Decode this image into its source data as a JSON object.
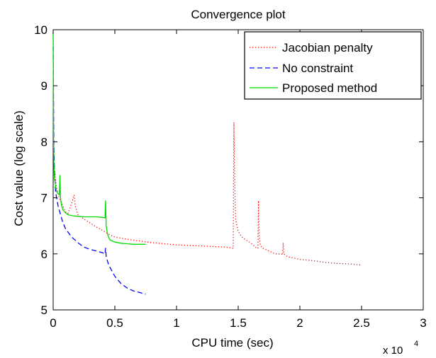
{
  "chart_data": {
    "type": "line",
    "title": "Convergence plot",
    "xlabel": "CPU time (sec)",
    "ylabel": "Cost value (log scale)",
    "x_multiplier_label": "x 10",
    "x_multiplier_exponent": "4",
    "xlim": [
      0,
      3
    ],
    "ylim": [
      5,
      10
    ],
    "x_ticks": [
      0,
      0.5,
      1,
      1.5,
      2,
      2.5,
      3
    ],
    "x_tick_labels": [
      "0",
      "0.5",
      "1",
      "1.5",
      "2",
      "2.5",
      "3"
    ],
    "y_ticks": [
      5,
      6,
      7,
      8,
      9,
      10
    ],
    "y_tick_labels": [
      "5",
      "6",
      "7",
      "8",
      "9",
      "10"
    ],
    "grid": false,
    "legend_position": "top-right",
    "series": [
      {
        "name": "Jacobian penalty",
        "color": "#ff0000",
        "style": "dotted",
        "x": [
          0.0,
          0.005,
          0.01,
          0.02,
          0.03,
          0.05,
          0.08,
          0.1,
          0.12,
          0.15,
          0.17,
          0.18,
          0.2,
          0.25,
          0.3,
          0.35,
          0.4,
          0.45,
          0.5,
          0.6,
          0.7,
          0.8,
          0.9,
          1.0,
          1.1,
          1.2,
          1.3,
          1.4,
          1.46,
          1.465,
          1.47,
          1.475,
          1.48,
          1.5,
          1.53,
          1.56,
          1.6,
          1.65,
          1.66,
          1.665,
          1.67,
          1.68,
          1.7,
          1.75,
          1.8,
          1.85,
          1.86,
          1.865,
          1.87,
          1.88,
          1.9,
          2.0,
          2.1,
          2.2,
          2.3,
          2.4,
          2.5
        ],
        "y": [
          9.9,
          8.0,
          7.55,
          7.3,
          7.15,
          7.0,
          6.85,
          6.75,
          6.72,
          6.9,
          7.05,
          6.85,
          6.7,
          6.62,
          6.55,
          6.48,
          6.42,
          6.35,
          6.3,
          6.26,
          6.23,
          6.2,
          6.18,
          6.16,
          6.15,
          6.14,
          6.13,
          6.12,
          6.1,
          8.35,
          7.6,
          6.9,
          6.6,
          6.4,
          6.3,
          6.25,
          6.2,
          6.1,
          6.1,
          6.95,
          6.3,
          6.15,
          6.1,
          6.05,
          6.0,
          6.0,
          5.98,
          6.2,
          6.0,
          5.98,
          5.95,
          5.9,
          5.88,
          5.85,
          5.83,
          5.82,
          5.8
        ]
      },
      {
        "name": "No constraint",
        "color": "#0000ff",
        "style": "dashed",
        "x": [
          0.0,
          0.005,
          0.01,
          0.02,
          0.04,
          0.06,
          0.08,
          0.1,
          0.15,
          0.2,
          0.25,
          0.3,
          0.35,
          0.4,
          0.42,
          0.425,
          0.43,
          0.45,
          0.5,
          0.55,
          0.6,
          0.65,
          0.7,
          0.75
        ],
        "y": [
          9.7,
          8.0,
          7.5,
          7.1,
          6.85,
          6.7,
          6.55,
          6.45,
          6.3,
          6.2,
          6.12,
          6.08,
          6.05,
          6.02,
          6.0,
          6.1,
          5.95,
          5.8,
          5.6,
          5.47,
          5.39,
          5.34,
          5.31,
          5.28
        ]
      },
      {
        "name": "Proposed method",
        "color": "#00dd00",
        "style": "solid",
        "x": [
          0.0,
          0.003,
          0.006,
          0.01,
          0.02,
          0.03,
          0.05,
          0.055,
          0.06,
          0.065,
          0.07,
          0.08,
          0.1,
          0.12,
          0.15,
          0.2,
          0.25,
          0.3,
          0.35,
          0.4,
          0.42,
          0.425,
          0.43,
          0.44,
          0.46,
          0.5,
          0.55,
          0.6,
          0.65,
          0.7,
          0.75
        ],
        "y": [
          9.95,
          8.1,
          7.6,
          7.35,
          7.2,
          7.1,
          7.05,
          7.4,
          7.0,
          6.9,
          6.85,
          6.78,
          6.73,
          6.7,
          6.68,
          6.67,
          6.66,
          6.66,
          6.66,
          6.65,
          6.64,
          6.95,
          6.5,
          6.35,
          6.25,
          6.21,
          6.19,
          6.18,
          6.17,
          6.17,
          6.17
        ]
      }
    ]
  }
}
